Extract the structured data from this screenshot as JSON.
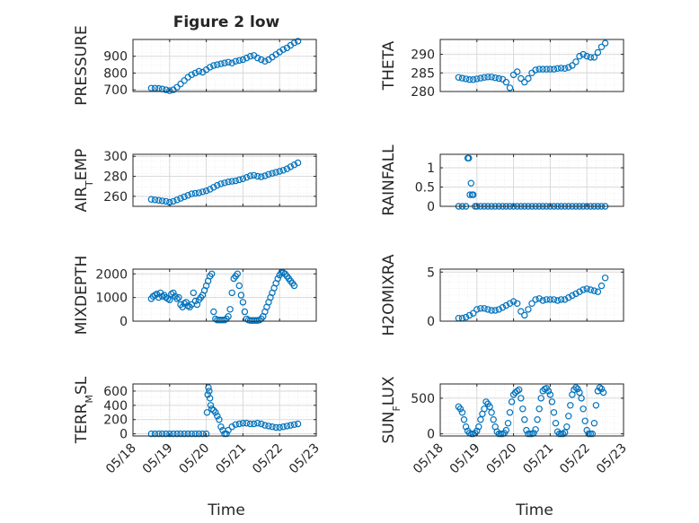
{
  "figure": {
    "title": "Figure 2 low",
    "xlabel": "Time"
  },
  "x_ticks": [
    "05/18",
    "05/19",
    "05/20",
    "05/21",
    "05/22",
    "05/23"
  ],
  "style": {
    "marker_color": "#0072BD",
    "grid_color": "#d9d9d9",
    "axis_color": "#262626"
  },
  "chart_data": [
    {
      "type": "scatter",
      "ylabel": "PRESSURE",
      "xlim": [
        0,
        5
      ],
      "ylim": [
        690,
        1000
      ],
      "yticks": [
        700,
        800,
        900
      ],
      "yticklabels": [
        "700",
        "800",
        "900"
      ],
      "x": [
        0.5,
        0.6,
        0.7,
        0.8,
        0.9,
        1.0,
        1.1,
        1.2,
        1.3,
        1.4,
        1.5,
        1.6,
        1.7,
        1.8,
        1.9,
        2.0,
        2.1,
        2.2,
        2.3,
        2.4,
        2.5,
        2.6,
        2.7,
        2.8,
        2.9,
        3.0,
        3.1,
        3.2,
        3.3,
        3.4,
        3.5,
        3.6,
        3.7,
        3.8,
        3.9,
        4.0,
        4.1,
        4.2,
        4.3,
        4.4,
        4.5
      ],
      "y": [
        710,
        710,
        708,
        705,
        700,
        695,
        700,
        715,
        735,
        755,
        775,
        790,
        800,
        810,
        805,
        820,
        835,
        845,
        850,
        855,
        860,
        865,
        860,
        870,
        875,
        880,
        890,
        900,
        905,
        890,
        880,
        870,
        880,
        895,
        910,
        925,
        940,
        950,
        965,
        980,
        990
      ]
    },
    {
      "type": "scatter",
      "ylabel": "THETA",
      "xlim": [
        0,
        5
      ],
      "ylim": [
        280,
        294
      ],
      "yticks": [
        280,
        285,
        290
      ],
      "yticklabels": [
        "280",
        "285",
        "290"
      ],
      "x": [
        0.5,
        0.6,
        0.7,
        0.8,
        0.9,
        1.0,
        1.1,
        1.2,
        1.3,
        1.4,
        1.5,
        1.6,
        1.7,
        1.8,
        1.9,
        2.0,
        2.1,
        2.2,
        2.3,
        2.4,
        2.5,
        2.6,
        2.7,
        2.8,
        2.9,
        3.0,
        3.1,
        3.2,
        3.3,
        3.4,
        3.5,
        3.6,
        3.7,
        3.8,
        3.9,
        4.0,
        4.1,
        4.2,
        4.3,
        4.4,
        4.5
      ],
      "y": [
        283.8,
        283.6,
        283.4,
        283.2,
        283.2,
        283.4,
        283.6,
        283.8,
        283.9,
        283.9,
        283.7,
        283.5,
        283.3,
        282.5,
        281.0,
        284.5,
        285.3,
        283.5,
        282.5,
        283.5,
        285.0,
        285.8,
        286.0,
        286.0,
        286.0,
        286.0,
        286.0,
        286.2,
        286.3,
        286.2,
        286.5,
        287.0,
        288.0,
        289.5,
        290.0,
        289.5,
        289.2,
        289.2,
        290.5,
        292.0,
        293.0
      ]
    },
    {
      "type": "scatter",
      "ylabel": "AIR_TEMP",
      "ylabel_main": "AIR",
      "ylabel_sub": "T",
      "ylabel_rest": "EMP",
      "xlim": [
        0,
        5
      ],
      "ylim": [
        250,
        302
      ],
      "yticks": [
        260,
        280,
        300
      ],
      "yticklabels": [
        "260",
        "280",
        "300"
      ],
      "x": [
        0.5,
        0.6,
        0.7,
        0.8,
        0.9,
        1.0,
        1.1,
        1.2,
        1.3,
        1.4,
        1.5,
        1.6,
        1.7,
        1.8,
        1.9,
        2.0,
        2.1,
        2.2,
        2.3,
        2.4,
        2.5,
        2.6,
        2.7,
        2.8,
        2.9,
        3.0,
        3.1,
        3.2,
        3.3,
        3.4,
        3.5,
        3.6,
        3.7,
        3.8,
        3.9,
        4.0,
        4.1,
        4.2,
        4.3,
        4.4,
        4.5
      ],
      "y": [
        257,
        256.5,
        256,
        255.5,
        255,
        254,
        255,
        256.5,
        258,
        259.5,
        261,
        262.5,
        263,
        263.5,
        264.5,
        265.5,
        267,
        269,
        271,
        272.5,
        273.5,
        274.5,
        275,
        275.5,
        276.5,
        277.5,
        279,
        280.5,
        281,
        280,
        279.5,
        280.5,
        282,
        283,
        284,
        285,
        286,
        287.5,
        289.5,
        291.5,
        293.5
      ]
    },
    {
      "type": "scatter",
      "ylabel": "RAINFALL",
      "xlim": [
        0,
        5
      ],
      "ylim": [
        0,
        1.35
      ],
      "yticks": [
        0,
        0.5,
        1
      ],
      "yticklabels": [
        "0",
        "0.5",
        "1"
      ],
      "x": [
        0.5,
        0.6,
        0.7,
        0.75,
        0.78,
        0.81,
        0.84,
        0.87,
        0.9,
        0.95,
        1.0,
        1.1,
        1.2,
        1.3,
        1.4,
        1.5,
        1.6,
        1.7,
        1.8,
        1.9,
        2.0,
        2.1,
        2.2,
        2.3,
        2.4,
        2.5,
        2.6,
        2.7,
        2.8,
        2.9,
        3.0,
        3.1,
        3.2,
        3.3,
        3.4,
        3.5,
        3.6,
        3.7,
        3.8,
        3.9,
        4.0,
        4.1,
        4.2,
        4.3,
        4.4,
        4.5
      ],
      "y": [
        0,
        0,
        0,
        1.25,
        1.25,
        0.3,
        0.6,
        0.3,
        0.3,
        0,
        0,
        0,
        0,
        0,
        0,
        0,
        0,
        0,
        0,
        0,
        0,
        0,
        0,
        0,
        0,
        0,
        0,
        0,
        0,
        0,
        0,
        0,
        0,
        0,
        0,
        0,
        0,
        0,
        0,
        0,
        0,
        0,
        0,
        0,
        0,
        0
      ]
    },
    {
      "type": "scatter",
      "ylabel": "MIXDEPTH",
      "xlim": [
        0,
        5
      ],
      "ylim": [
        0,
        2200
      ],
      "yticks": [
        0,
        1000,
        2000
      ],
      "yticklabels": [
        "0",
        "1000",
        "2000"
      ],
      "x": [
        0.5,
        0.55,
        0.6,
        0.65,
        0.7,
        0.75,
        0.8,
        0.85,
        0.9,
        0.95,
        1.0,
        1.05,
        1.1,
        1.15,
        1.2,
        1.25,
        1.3,
        1.35,
        1.4,
        1.45,
        1.5,
        1.55,
        1.6,
        1.65,
        1.7,
        1.75,
        1.8,
        1.85,
        1.9,
        1.95,
        2.0,
        2.05,
        2.1,
        2.15,
        2.2,
        2.25,
        2.3,
        2.35,
        2.4,
        2.45,
        2.5,
        2.55,
        2.6,
        2.65,
        2.7,
        2.75,
        2.8,
        2.85,
        2.9,
        2.95,
        3.0,
        3.05,
        3.1,
        3.15,
        3.2,
        3.25,
        3.3,
        3.35,
        3.4,
        3.45,
        3.5,
        3.55,
        3.6,
        3.65,
        3.7,
        3.75,
        3.8,
        3.85,
        3.9,
        3.95,
        4.0,
        4.05,
        4.1,
        4.15,
        4.2,
        4.25,
        4.3,
        4.35,
        4.4
      ],
      "y": [
        950,
        1050,
        1100,
        1150,
        1000,
        1200,
        1050,
        1100,
        1000,
        950,
        900,
        1150,
        1200,
        1050,
        950,
        1000,
        700,
        600,
        750,
        800,
        650,
        600,
        700,
        1200,
        850,
        700,
        900,
        1000,
        1100,
        1300,
        1500,
        1700,
        1900,
        2000,
        400,
        100,
        50,
        50,
        50,
        50,
        50,
        100,
        200,
        500,
        1200,
        1800,
        1900,
        2000,
        1500,
        1100,
        800,
        400,
        100,
        50,
        30,
        30,
        30,
        30,
        30,
        50,
        100,
        200,
        400,
        600,
        800,
        1000,
        1200,
        1400,
        1600,
        1800,
        1950,
        2050,
        2050,
        2000,
        1900,
        1800,
        1700,
        1600,
        1500
      ]
    },
    {
      "type": "scatter",
      "ylabel": "H2OMIXRA",
      "xlim": [
        0,
        5
      ],
      "ylim": [
        0,
        5.3
      ],
      "yticks": [
        0,
        5
      ],
      "yticklabels": [
        "0",
        "5"
      ],
      "x": [
        0.5,
        0.6,
        0.7,
        0.8,
        0.9,
        1.0,
        1.1,
        1.2,
        1.3,
        1.4,
        1.5,
        1.6,
        1.7,
        1.8,
        1.9,
        2.0,
        2.1,
        2.2,
        2.3,
        2.4,
        2.5,
        2.6,
        2.7,
        2.8,
        2.9,
        3.0,
        3.1,
        3.2,
        3.3,
        3.4,
        3.5,
        3.6,
        3.7,
        3.8,
        3.9,
        4.0,
        4.1,
        4.2,
        4.3,
        4.4,
        4.5
      ],
      "y": [
        0.3,
        0.3,
        0.4,
        0.6,
        0.8,
        1.2,
        1.3,
        1.3,
        1.2,
        1.1,
        1.1,
        1.2,
        1.4,
        1.6,
        1.8,
        2.0,
        1.8,
        1.0,
        0.6,
        1.2,
        1.8,
        2.2,
        2.3,
        2.1,
        2.2,
        2.2,
        2.2,
        2.1,
        2.2,
        2.2,
        2.4,
        2.6,
        2.8,
        3.0,
        3.2,
        3.3,
        3.2,
        3.1,
        3.0,
        3.6,
        4.4
      ]
    },
    {
      "type": "scatter",
      "ylabel": "TERR_MSL",
      "ylabel_main": "TERR",
      "ylabel_sub": "M",
      "ylabel_rest": "SL",
      "xlim": [
        0,
        5
      ],
      "ylim": [
        -30,
        700
      ],
      "yticks": [
        0,
        200,
        400,
        600
      ],
      "yticklabels": [
        "0",
        "200",
        "400",
        "600"
      ],
      "x": [
        0.5,
        0.6,
        0.7,
        0.8,
        0.9,
        1.0,
        1.1,
        1.2,
        1.3,
        1.4,
        1.5,
        1.6,
        1.7,
        1.8,
        1.9,
        2.0,
        2.02,
        2.04,
        2.06,
        2.08,
        2.1,
        2.12,
        2.15,
        2.2,
        2.25,
        2.3,
        2.35,
        2.4,
        2.45,
        2.5,
        2.55,
        2.6,
        2.7,
        2.8,
        2.9,
        3.0,
        3.1,
        3.2,
        3.3,
        3.4,
        3.5,
        3.6,
        3.7,
        3.8,
        3.9,
        4.0,
        4.1,
        4.2,
        4.3,
        4.4,
        4.5
      ],
      "y": [
        0,
        0,
        0,
        0,
        0,
        0,
        0,
        0,
        0,
        0,
        0,
        0,
        0,
        0,
        0,
        0,
        300,
        550,
        650,
        600,
        500,
        400,
        350,
        330,
        300,
        250,
        200,
        100,
        50,
        0,
        0,
        50,
        100,
        130,
        140,
        150,
        150,
        140,
        140,
        150,
        140,
        120,
        110,
        100,
        90,
        90,
        100,
        110,
        120,
        130,
        140
      ]
    },
    {
      "type": "scatter",
      "ylabel": "SUN_FLUX",
      "ylabel_main": "SUN",
      "ylabel_sub": "F",
      "ylabel_rest": "LUX",
      "xlim": [
        0,
        5
      ],
      "ylim": [
        -30,
        700
      ],
      "yticks": [
        0,
        500
      ],
      "yticklabels": [
        "0",
        "500"
      ],
      "x": [
        0.5,
        0.55,
        0.6,
        0.65,
        0.7,
        0.75,
        0.8,
        0.85,
        0.9,
        0.95,
        1.0,
        1.05,
        1.1,
        1.15,
        1.2,
        1.25,
        1.3,
        1.35,
        1.4,
        1.45,
        1.5,
        1.55,
        1.6,
        1.65,
        1.7,
        1.75,
        1.8,
        1.85,
        1.9,
        1.95,
        2.0,
        2.05,
        2.1,
        2.15,
        2.2,
        2.25,
        2.3,
        2.35,
        2.4,
        2.45,
        2.5,
        2.55,
        2.6,
        2.65,
        2.7,
        2.75,
        2.8,
        2.85,
        2.9,
        2.95,
        3.0,
        3.05,
        3.1,
        3.15,
        3.2,
        3.25,
        3.3,
        3.35,
        3.4,
        3.45,
        3.5,
        3.55,
        3.6,
        3.65,
        3.7,
        3.75,
        3.8,
        3.85,
        3.9,
        3.95,
        4.0,
        4.05,
        4.1,
        4.15,
        4.2,
        4.25,
        4.3,
        4.35,
        4.4,
        4.45
      ],
      "y": [
        380,
        350,
        300,
        200,
        100,
        40,
        10,
        0,
        0,
        10,
        40,
        100,
        200,
        280,
        350,
        450,
        420,
        380,
        300,
        200,
        100,
        30,
        0,
        0,
        0,
        10,
        50,
        150,
        300,
        450,
        550,
        580,
        600,
        620,
        500,
        350,
        200,
        50,
        0,
        0,
        0,
        10,
        60,
        200,
        350,
        500,
        600,
        630,
        640,
        600,
        550,
        450,
        300,
        150,
        30,
        0,
        0,
        0,
        20,
        100,
        250,
        400,
        550,
        620,
        650,
        630,
        580,
        500,
        350,
        180,
        50,
        0,
        0,
        0,
        150,
        400,
        600,
        650,
        630,
        580
      ]
    }
  ]
}
